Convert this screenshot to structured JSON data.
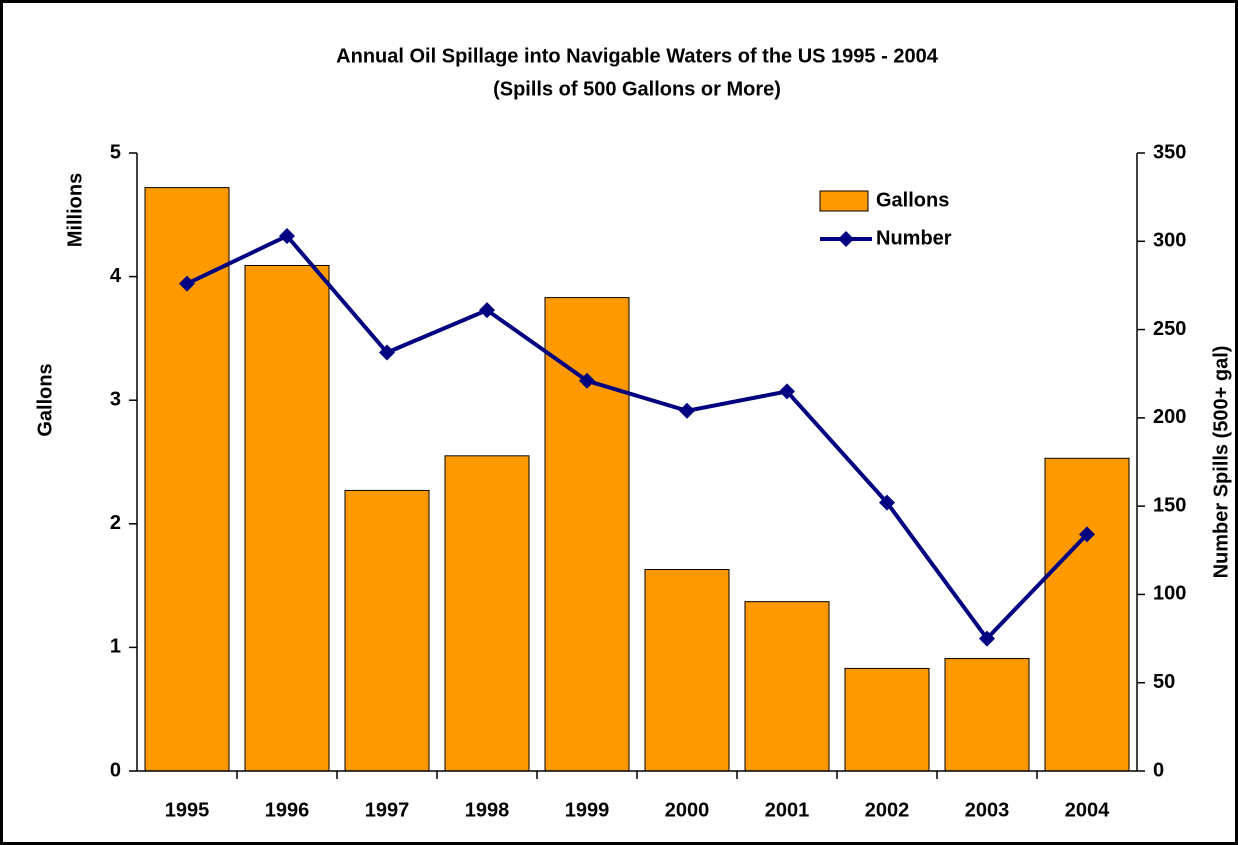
{
  "chart_data": {
    "type": "bar_line",
    "title": "Annual Oil Spillage into Navigable Waters of the US 1995 - 2004",
    "subtitle": "(Spills of 500 Gallons or More)",
    "ylabel": "Gallons",
    "yunit": "Millions",
    "y2label": "Number Spills (500+ gal)",
    "categories": [
      "1995",
      "1996",
      "1997",
      "1998",
      "1999",
      "2000",
      "2001",
      "2002",
      "2003",
      "2004"
    ],
    "series": [
      {
        "name": "Gallons",
        "type": "bar",
        "color": "#ff9900",
        "values": [
          4.72,
          4.09,
          2.27,
          2.55,
          3.83,
          1.63,
          1.37,
          0.83,
          0.91,
          2.53
        ]
      },
      {
        "name": "Number",
        "type": "line",
        "axis": "y2",
        "color": "#000080",
        "values": [
          276,
          303,
          237,
          261,
          221,
          204,
          215,
          152,
          75,
          134
        ]
      }
    ],
    "ylim": [
      0,
      5
    ],
    "yticks": [
      0,
      1,
      2,
      3,
      4,
      5
    ],
    "y2lim": [
      0,
      350
    ],
    "y2ticks": [
      0,
      50,
      100,
      150,
      200,
      250,
      300,
      350
    ],
    "grid": false,
    "legend": "upper right"
  }
}
